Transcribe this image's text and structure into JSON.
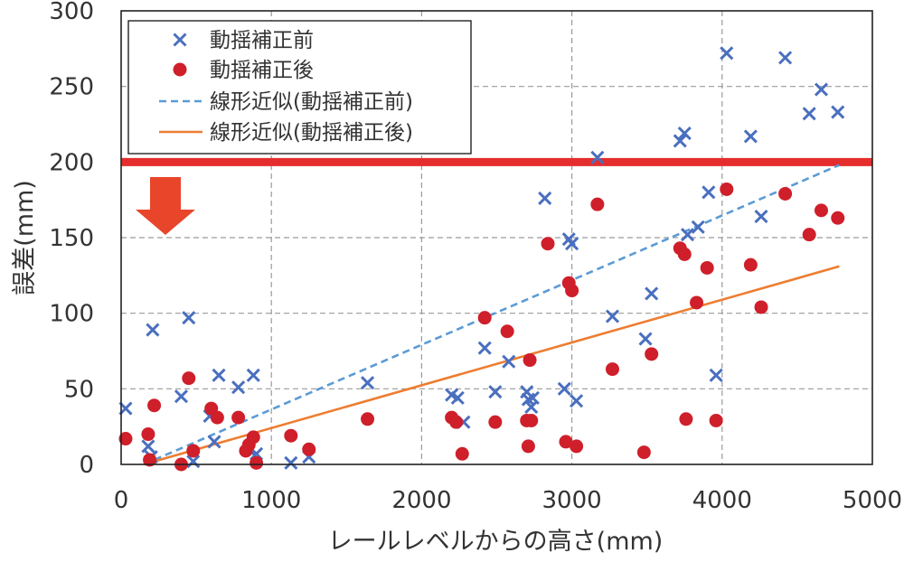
{
  "chart_data": {
    "type": "scatter",
    "title": "",
    "xlabel": "レールレベルからの高さ(mm)",
    "ylabel": "誤差(mm)",
    "xlim": [
      0,
      5000
    ],
    "ylim": [
      0,
      300
    ],
    "x_ticks": [
      0,
      1000,
      2000,
      3000,
      4000,
      5000
    ],
    "y_ticks": [
      0,
      50,
      100,
      150,
      200,
      250,
      300
    ],
    "grid": true,
    "legend_position": "top-left",
    "threshold_line": {
      "value": 200,
      "color": "#e52d2d"
    },
    "down_arrow_color": "#e8452a",
    "series": [
      {
        "name": "動揺補正前",
        "kind": "scatter",
        "marker": "x",
        "color": "#4a6fbf",
        "points": [
          [
            30,
            37
          ],
          [
            180,
            12
          ],
          [
            200,
            5
          ],
          [
            210,
            89
          ],
          [
            400,
            45
          ],
          [
            450,
            97
          ],
          [
            480,
            2
          ],
          [
            590,
            32
          ],
          [
            620,
            15
          ],
          [
            650,
            59
          ],
          [
            780,
            51
          ],
          [
            850,
            10
          ],
          [
            880,
            59
          ],
          [
            900,
            7
          ],
          [
            1130,
            1
          ],
          [
            1250,
            5
          ],
          [
            1640,
            54
          ],
          [
            2200,
            46
          ],
          [
            2240,
            44
          ],
          [
            2280,
            28
          ],
          [
            2420,
            77
          ],
          [
            2490,
            48
          ],
          [
            2580,
            68
          ],
          [
            2700,
            48
          ],
          [
            2710,
            43
          ],
          [
            2730,
            38
          ],
          [
            2740,
            44
          ],
          [
            2820,
            176
          ],
          [
            2950,
            50
          ],
          [
            2980,
            149
          ],
          [
            3000,
            146
          ],
          [
            3030,
            42
          ],
          [
            3170,
            203
          ],
          [
            3270,
            98
          ],
          [
            3490,
            83
          ],
          [
            3530,
            113
          ],
          [
            3720,
            214
          ],
          [
            3750,
            219
          ],
          [
            3770,
            152
          ],
          [
            3840,
            157
          ],
          [
            3910,
            180
          ],
          [
            3960,
            59
          ],
          [
            4030,
            272
          ],
          [
            4190,
            217
          ],
          [
            4260,
            164
          ],
          [
            4420,
            269
          ],
          [
            4580,
            232
          ],
          [
            4660,
            248
          ],
          [
            4770,
            233
          ]
        ]
      },
      {
        "name": "動揺補正後",
        "kind": "scatter",
        "marker": "circle",
        "color": "#cf1f2a",
        "points": [
          [
            30,
            17
          ],
          [
            180,
            20
          ],
          [
            190,
            3
          ],
          [
            220,
            39
          ],
          [
            400,
            0
          ],
          [
            450,
            57
          ],
          [
            480,
            9
          ],
          [
            600,
            37
          ],
          [
            640,
            31
          ],
          [
            780,
            31
          ],
          [
            830,
            9
          ],
          [
            850,
            13
          ],
          [
            880,
            18
          ],
          [
            900,
            1
          ],
          [
            1130,
            19
          ],
          [
            1250,
            10
          ],
          [
            1640,
            30
          ],
          [
            2200,
            31
          ],
          [
            2230,
            28
          ],
          [
            2270,
            7
          ],
          [
            2420,
            97
          ],
          [
            2490,
            28
          ],
          [
            2570,
            88
          ],
          [
            2700,
            29
          ],
          [
            2710,
            12
          ],
          [
            2720,
            69
          ],
          [
            2730,
            29
          ],
          [
            2840,
            146
          ],
          [
            2960,
            15
          ],
          [
            2980,
            120
          ],
          [
            3000,
            115
          ],
          [
            3030,
            12
          ],
          [
            3170,
            172
          ],
          [
            3270,
            63
          ],
          [
            3480,
            8
          ],
          [
            3530,
            73
          ],
          [
            3720,
            143
          ],
          [
            3750,
            139
          ],
          [
            3760,
            30
          ],
          [
            3830,
            107
          ],
          [
            3900,
            130
          ],
          [
            3960,
            29
          ],
          [
            4030,
            182
          ],
          [
            4190,
            132
          ],
          [
            4260,
            104
          ],
          [
            4420,
            179
          ],
          [
            4580,
            152
          ],
          [
            4660,
            168
          ],
          [
            4770,
            163
          ]
        ]
      },
      {
        "name": "線形近似(動揺補正前)",
        "kind": "line",
        "style": "dashed",
        "color": "#5b9bd5",
        "x": [
          150,
          4780
        ],
        "y": [
          0,
          198
        ]
      },
      {
        "name": "線形近似(動揺補正後)",
        "kind": "line",
        "style": "solid",
        "color": "#ed7d31",
        "x": [
          150,
          4780
        ],
        "y": [
          0,
          131
        ]
      }
    ]
  }
}
